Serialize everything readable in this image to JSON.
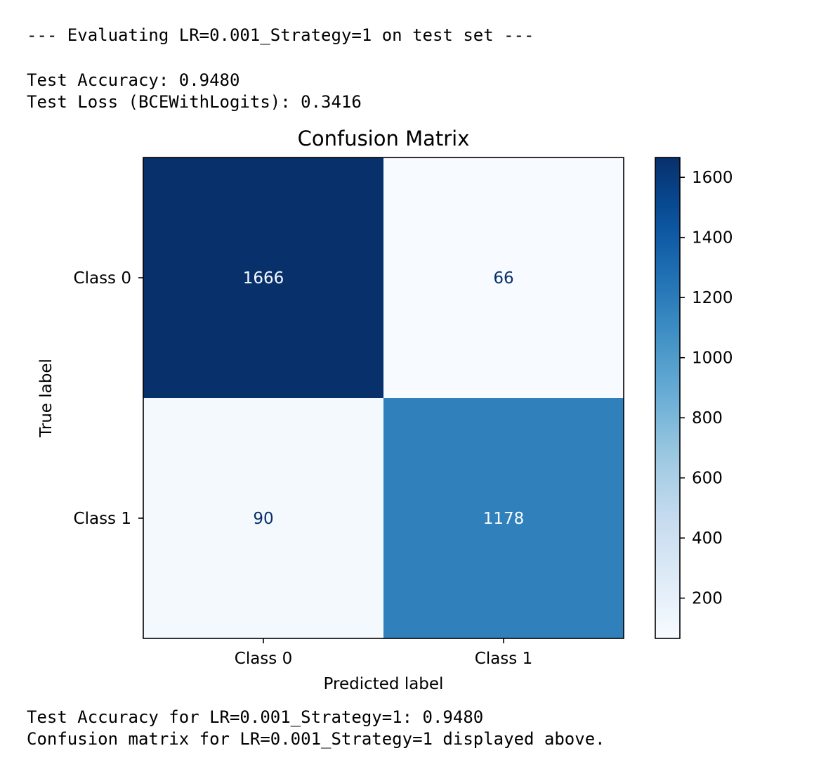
{
  "console": {
    "header": "--- Evaluating LR=0.001_Strategy=1 on test set ---",
    "accuracy": "Test Accuracy: 0.9480",
    "loss": "Test Loss (BCEWithLogits): 0.3416",
    "footer_accuracy": "Test Accuracy for LR=0.001_Strategy=1: 0.9480",
    "footer_confusion": "Confusion matrix for LR=0.001_Strategy=1 displayed above."
  },
  "chart_data": {
    "type": "heatmap",
    "title": "Confusion Matrix",
    "xlabel": "Predicted label",
    "ylabel": "True label",
    "x_categories": [
      "Class 0",
      "Class 1"
    ],
    "y_categories": [
      "Class 0",
      "Class 1"
    ],
    "matrix": [
      [
        1666,
        66
      ],
      [
        90,
        1178
      ]
    ],
    "colormap": "Blues",
    "color_range": [
      66,
      1666
    ],
    "colorbar_ticks": [
      200,
      400,
      600,
      800,
      1000,
      1200,
      1400,
      1600
    ],
    "colors": {
      "min": "#f7fbff",
      "max": "#08306b",
      "cell_text_dark": "#08306b",
      "cell_text_light": "#f7fbff"
    }
  }
}
